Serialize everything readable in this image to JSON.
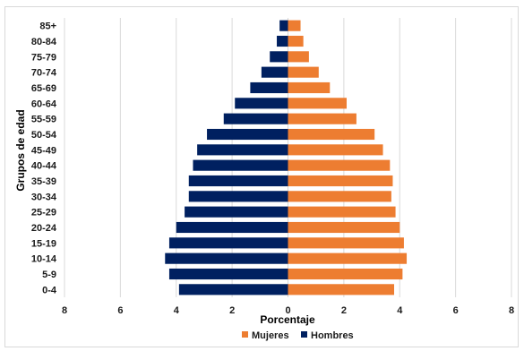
{
  "chart_data": {
    "type": "bar",
    "orientation": "horizontal",
    "title": "",
    "xlabel": "Porcentaje",
    "ylabel": "Grupos de edad",
    "xlim": [
      -8,
      8
    ],
    "x_tick_values": [
      -8,
      -6,
      -4,
      -2,
      0,
      2,
      4,
      6,
      8
    ],
    "x_tick_labels": [
      "8",
      "6",
      "4",
      "2",
      "0",
      "2",
      "4",
      "6",
      "8"
    ],
    "grid": "vertical",
    "legend_position": "bottom",
    "categories": [
      "0-4",
      "5-9",
      "10-14",
      "15-19",
      "20-24",
      "25-29",
      "30-34",
      "35-39",
      "40-44",
      "45-49",
      "50-54",
      "55-59",
      "60-64",
      "65-69",
      "70-74",
      "75-79",
      "80-84",
      "85+"
    ],
    "series": [
      {
        "name": "Mujeres",
        "color": "#ed7d31",
        "side": "right",
        "values": [
          3.8,
          4.1,
          4.25,
          4.15,
          4.0,
          3.85,
          3.7,
          3.75,
          3.65,
          3.4,
          3.1,
          2.45,
          2.1,
          1.5,
          1.1,
          0.75,
          0.55,
          0.45
        ]
      },
      {
        "name": "Hombres",
        "color": "#002060",
        "side": "left",
        "values": [
          3.9,
          4.25,
          4.4,
          4.25,
          4.0,
          3.7,
          3.55,
          3.55,
          3.4,
          3.25,
          2.9,
          2.3,
          1.9,
          1.35,
          0.95,
          0.65,
          0.4,
          0.3
        ]
      }
    ]
  }
}
